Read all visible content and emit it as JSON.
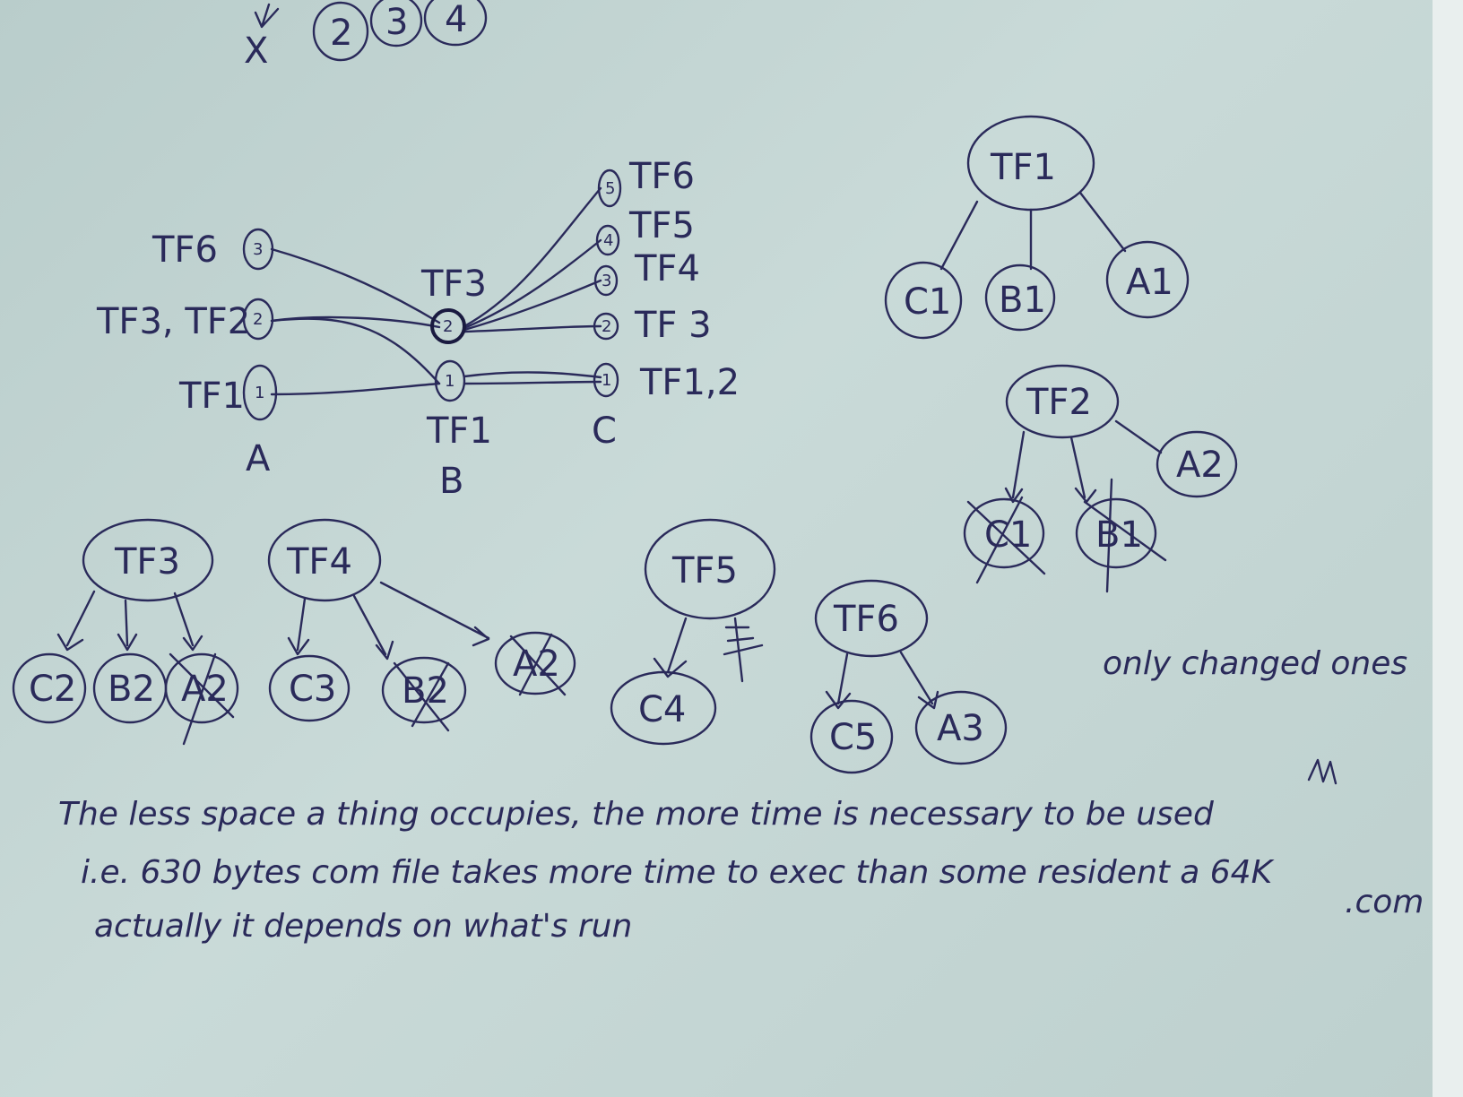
{
  "top_row": {
    "cross": "X",
    "circles": [
      "2",
      "3",
      "4"
    ]
  },
  "graph": {
    "column_a": {
      "label": "A",
      "nodes": [
        {
          "id": "a3",
          "num": "3",
          "label": "TF6"
        },
        {
          "id": "a2",
          "num": "2",
          "label": "TF3, TF2"
        },
        {
          "id": "a1",
          "num": "1",
          "label": "TF1"
        }
      ]
    },
    "column_b": {
      "label": "B",
      "nodes": [
        {
          "id": "b2",
          "num": "2",
          "label": "TF3"
        },
        {
          "id": "b1",
          "num": "1",
          "label": "TF1"
        }
      ]
    },
    "column_c": {
      "label": "C",
      "nodes": [
        {
          "id": "c5",
          "num": "5",
          "label": "TF6"
        },
        {
          "id": "c4",
          "num": "4",
          "label": "TF5"
        },
        {
          "id": "c3",
          "num": "3",
          "label": "TF4"
        },
        {
          "id": "c2",
          "num": "2",
          "label": "TF 3"
        },
        {
          "id": "c1",
          "num": "1",
          "label": "TF1,2"
        }
      ]
    }
  },
  "trees": [
    {
      "root": "TF1",
      "children": [
        "C1",
        "B1",
        "A1"
      ]
    },
    {
      "root": "TF2",
      "children": [
        "C1",
        "B1",
        "A2"
      ]
    },
    {
      "root": "TF3",
      "children": [
        "C2",
        "B2",
        "A2"
      ]
    },
    {
      "root": "TF4",
      "children": [
        "C3",
        "B2",
        "A2"
      ]
    },
    {
      "root": "TF5",
      "children": [
        "C4"
      ]
    },
    {
      "root": "TF6",
      "children": [
        "C5",
        "A3"
      ]
    }
  ],
  "note_right": "only changed ones",
  "notes": [
    "The less space a thing occupies, the more time is necessary to be used",
    "i.e. 630 bytes com file takes more time to exec than some resident a 64K",
    "actually it depends on what's run"
  ],
  "note_com": ".com"
}
